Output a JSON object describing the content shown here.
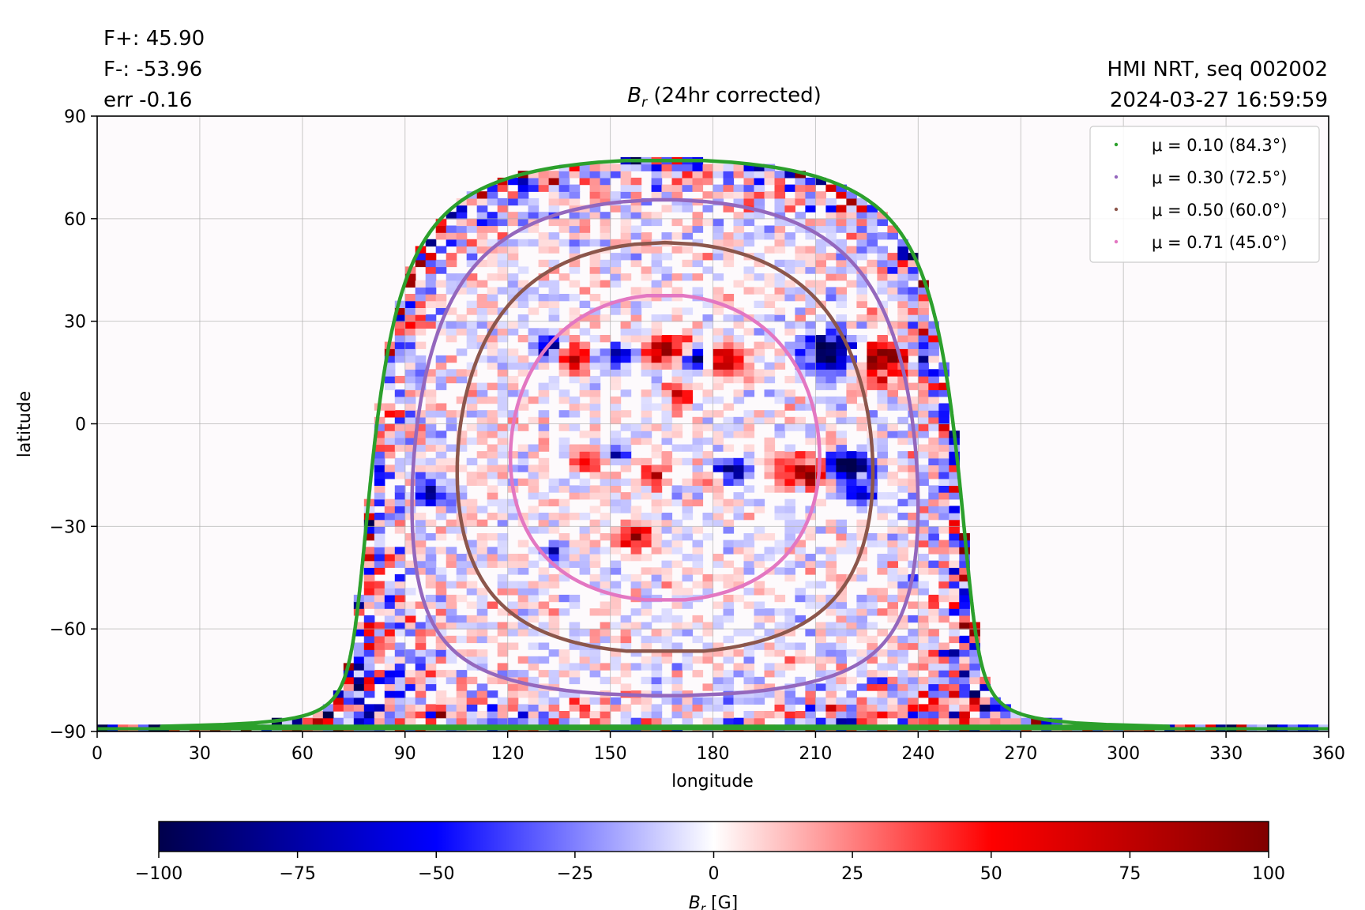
{
  "header": {
    "flux_pos": "F+: 45.90",
    "flux_neg": "F-: -53.96",
    "err": "err -0.16",
    "source": "HMI NRT, seq 002002",
    "timestamp": "2024-03-27 16:59:59"
  },
  "chart_data": {
    "type": "heatmap",
    "title_symbol": "B",
    "title_sub": "r",
    "title_text": " (24hr corrected)",
    "xlabel": "longitude",
    "ylabel": "latitude",
    "xlim": [
      0,
      360
    ],
    "ylim": [
      -90,
      90
    ],
    "x_ticks": [
      {
        "value": 0,
        "label": "0"
      },
      {
        "value": 30,
        "label": "30"
      },
      {
        "value": 60,
        "label": "60"
      },
      {
        "value": 90,
        "label": "90"
      },
      {
        "value": 120,
        "label": "120"
      },
      {
        "value": 150,
        "label": "150"
      },
      {
        "value": 180,
        "label": "180"
      },
      {
        "value": 210,
        "label": "210"
      },
      {
        "value": 240,
        "label": "240"
      },
      {
        "value": 270,
        "label": "270"
      },
      {
        "value": 300,
        "label": "300"
      },
      {
        "value": 330,
        "label": "330"
      },
      {
        "value": 360,
        "label": "360"
      }
    ],
    "y_ticks": [
      {
        "value": 90,
        "label": "90"
      },
      {
        "value": 60,
        "label": "60"
      },
      {
        "value": 30,
        "label": "30"
      },
      {
        "value": 0,
        "label": "0"
      },
      {
        "value": -30,
        "label": "−30"
      },
      {
        "value": -60,
        "label": "−60"
      },
      {
        "value": -90,
        "label": "−90"
      }
    ],
    "grid": true,
    "legend_position": "top-right",
    "disk_center": {
      "lon": 166,
      "lat": -7
    },
    "contours": [
      {
        "mu": 0.1,
        "angle_deg": 84.3,
        "label": "μ = 0.10 (84.3°)",
        "color": "#2ca02c"
      },
      {
        "mu": 0.3,
        "angle_deg": 72.5,
        "label": "μ = 0.30 (72.5°)",
        "color": "#9467bd"
      },
      {
        "mu": 0.5,
        "angle_deg": 60.0,
        "label": "μ = 0.50 (60.0°)",
        "color": "#8c564b"
      },
      {
        "mu": 0.71,
        "angle_deg": 45.0,
        "label": "μ = 0.71 (45.0°)",
        "color": "#e377c2"
      }
    ],
    "active_regions": [
      {
        "lon": 139,
        "lat": 20,
        "sign": 1,
        "amp": 90,
        "rlon": 4,
        "rlat": 4
      },
      {
        "lon": 132,
        "lat": 23,
        "sign": -1,
        "amp": 70,
        "rlon": 4,
        "rlat": 3
      },
      {
        "lon": 152,
        "lat": 20,
        "sign": -1,
        "amp": 70,
        "rlon": 5,
        "rlat": 3
      },
      {
        "lon": 166,
        "lat": 22,
        "sign": 1,
        "amp": 85,
        "rlon": 6,
        "rlat": 4
      },
      {
        "lon": 175,
        "lat": 19,
        "sign": -1,
        "amp": 85,
        "rlon": 4,
        "rlat": 3
      },
      {
        "lon": 184,
        "lat": 19,
        "sign": 1,
        "amp": 90,
        "rlon": 5,
        "rlat": 4
      },
      {
        "lon": 170,
        "lat": 8,
        "sign": 1,
        "amp": 70,
        "rlon": 3,
        "rlat": 4
      },
      {
        "lon": 214,
        "lat": 21,
        "sign": -1,
        "amp": 100,
        "rlon": 8,
        "rlat": 6
      },
      {
        "lon": 229,
        "lat": 18,
        "sign": 1,
        "amp": 100,
        "rlon": 7,
        "rlat": 6
      },
      {
        "lon": 207,
        "lat": -14,
        "sign": 1,
        "amp": 100,
        "rlon": 7,
        "rlat": 4
      },
      {
        "lon": 219,
        "lat": -12,
        "sign": -1,
        "amp": 100,
        "rlon": 7,
        "rlat": 4
      },
      {
        "lon": 185,
        "lat": -14,
        "sign": -1,
        "amp": 85,
        "rlon": 5,
        "rlat": 3
      },
      {
        "lon": 180,
        "lat": -16,
        "sign": 1,
        "amp": 70,
        "rlon": 3,
        "rlat": 3
      },
      {
        "lon": 143,
        "lat": -11,
        "sign": 1,
        "amp": 75,
        "rlon": 3,
        "rlat": 3
      },
      {
        "lon": 152,
        "lat": -9,
        "sign": -1,
        "amp": 75,
        "rlon": 3,
        "rlat": 2
      },
      {
        "lon": 163,
        "lat": -15,
        "sign": 1,
        "amp": 70,
        "rlon": 4,
        "rlat": 4
      },
      {
        "lon": 157,
        "lat": -33,
        "sign": 1,
        "amp": 70,
        "rlon": 5,
        "rlat": 4
      },
      {
        "lon": 134,
        "lat": -37,
        "sign": -1,
        "amp": 50,
        "rlon": 3,
        "rlat": 3
      },
      {
        "lon": 98,
        "lat": -20,
        "sign": -1,
        "amp": 70,
        "rlon": 4,
        "rlat": 4
      },
      {
        "lon": 82,
        "lat": -12,
        "sign": -1,
        "amp": 65,
        "rlon": 2,
        "rlat": 4
      },
      {
        "lon": 241,
        "lat": 20,
        "sign": -1,
        "amp": 60,
        "rlon": 3,
        "rlat": 4
      },
      {
        "lon": 223,
        "lat": -20,
        "sign": -1,
        "amp": 70,
        "rlon": 4,
        "rlat": 3
      }
    ],
    "colorbar": {
      "label_symbol": "B",
      "label_sub": "r",
      "label_unit": " [G]",
      "vmin": -100,
      "vmax": 100,
      "colormap": "seismic",
      "ticks": [
        {
          "value": -100,
          "label": "−100"
        },
        {
          "value": -75,
          "label": "−75"
        },
        {
          "value": -50,
          "label": "−50"
        },
        {
          "value": -25,
          "label": "−25"
        },
        {
          "value": 0,
          "label": "0"
        },
        {
          "value": 25,
          "label": "25"
        },
        {
          "value": 50,
          "label": "50"
        },
        {
          "value": 75,
          "label": "75"
        },
        {
          "value": 100,
          "label": "100"
        }
      ]
    }
  }
}
